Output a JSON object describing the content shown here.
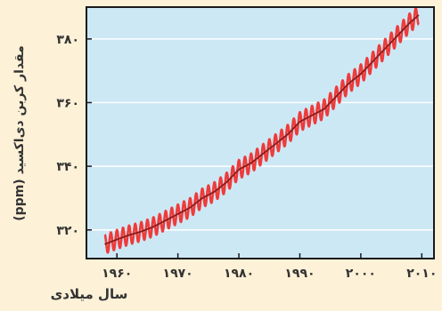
{
  "colors": {
    "page_background": "#fdf1d7",
    "plot_background": "#cde8f5",
    "frame": "#1a1a1a",
    "raw_series": "#ee3b3b",
    "trend_series": "#8b1a1a",
    "title": "#1e3fd0"
  },
  "chart_data": {
    "type": "line",
    "title": "",
    "xlabel": "سال میلادی",
    "ylabel": "مقدار کربن دی‌اکسید (ppm)",
    "xlim": [
      1955,
      2012
    ],
    "ylim": [
      311,
      390
    ],
    "x_ticks": [
      1960,
      1970,
      1980,
      1990,
      2000,
      2010
    ],
    "x_tick_labels": [
      "۱۹۶۰",
      "۱۹۷۰",
      "۱۹۸۰",
      "۱۹۹۰",
      "۲۰۰۰",
      "۲۰۱۰"
    ],
    "y_ticks": [
      320,
      340,
      360,
      380
    ],
    "y_tick_labels": [
      "۳۲۰",
      "۳۴۰",
      "۳۶۰",
      "۳۸۰"
    ],
    "grid": true,
    "seasonal_amplitude_ppm": 3,
    "series": [
      {
        "role": "monthly",
        "x": [
          1958,
          1960,
          1962,
          1964,
          1966,
          1968,
          1970,
          1972,
          1974,
          1976,
          1978,
          1980,
          1982,
          1984,
          1986,
          1988,
          1990,
          1992,
          1994,
          1996,
          1998,
          2000,
          2002,
          2004,
          2006,
          2008,
          2009.5
        ],
        "y": [
          315.5,
          317,
          318.4,
          319.5,
          321,
          323,
          325,
          327,
          330,
          332,
          335,
          339,
          341,
          344,
          347,
          350,
          354,
          356,
          358,
          362,
          366,
          369,
          373,
          377,
          381,
          385,
          387.5
        ]
      },
      {
        "role": "annual-average",
        "x": [
          1958,
          1960,
          1962,
          1964,
          1966,
          1968,
          1970,
          1972,
          1974,
          1976,
          1978,
          1980,
          1982,
          1984,
          1986,
          1988,
          1990,
          1992,
          1994,
          1996,
          1998,
          2000,
          2002,
          2004,
          2006,
          2008,
          2009.5
        ],
        "y": [
          315.5,
          317,
          318.4,
          319.5,
          321,
          323,
          325,
          327,
          330,
          332,
          335,
          339,
          341,
          344,
          347,
          350,
          354,
          356,
          358,
          362,
          366,
          369,
          373,
          377,
          381,
          385,
          387.5
        ]
      }
    ]
  }
}
